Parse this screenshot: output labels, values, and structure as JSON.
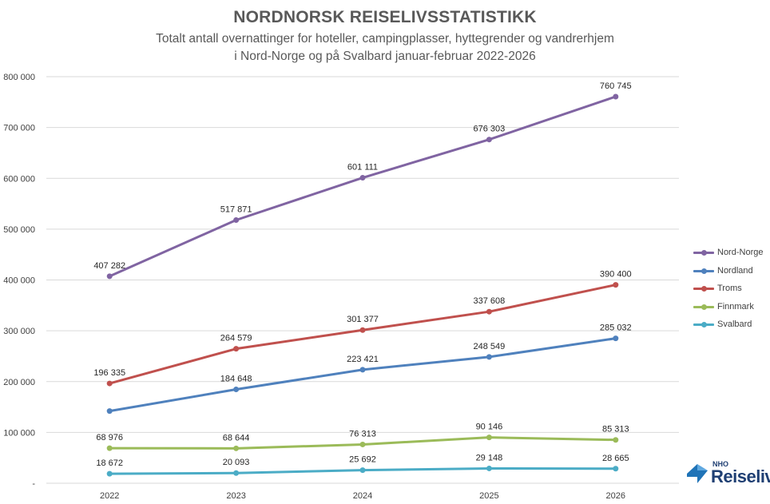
{
  "chart_data": {
    "type": "line",
    "title": "NORDNORSK REISELIVSSTATISTIKK",
    "subtitle_line1": "Totalt antall overnattinger for hoteller, campingplasser, hyttegrender og vandrerhjem",
    "subtitle_line2": "i Nord-Norge og på Svalbard januar-februar 2022-2026",
    "categories": [
      "2022",
      "2023",
      "2024",
      "2025",
      "2026"
    ],
    "ylim": [
      0,
      800000
    ],
    "y_ticks": [
      {
        "value": 0,
        "label": "-"
      },
      {
        "value": 100000,
        "label": "100 000"
      },
      {
        "value": 200000,
        "label": "200 000"
      },
      {
        "value": 300000,
        "label": "300 000"
      },
      {
        "value": 400000,
        "label": "400 000"
      },
      {
        "value": 500000,
        "label": "500 000"
      },
      {
        "value": 600000,
        "label": "600 000"
      },
      {
        "value": 700000,
        "label": "700 000"
      },
      {
        "value": 800000,
        "label": "800 000"
      }
    ],
    "grid": true,
    "legend_position": "right",
    "series": [
      {
        "name": "Nord-Norge",
        "color": "#8064a2",
        "values": [
          407282,
          517871,
          601111,
          676303,
          760745
        ],
        "labels": [
          "407 282",
          "517 871",
          "601 111",
          "676 303",
          "760 745"
        ]
      },
      {
        "name": "Nordland",
        "color": "#4f81bd",
        "values": [
          142000,
          184648,
          223421,
          248549,
          285032
        ],
        "labels": [
          "",
          "184 648",
          "223 421",
          "248 549",
          "285 032"
        ]
      },
      {
        "name": "Troms",
        "color": "#c0504d",
        "values": [
          196335,
          264579,
          301377,
          337608,
          390400
        ],
        "labels": [
          "196 335",
          "264 579",
          "301 377",
          "337 608",
          "390 400"
        ]
      },
      {
        "name": "Finnmark",
        "color": "#9bbb59",
        "values": [
          68976,
          68644,
          76313,
          90146,
          85313
        ],
        "labels": [
          "68 976",
          "68 644",
          "76 313",
          "90 146",
          "85 313"
        ]
      },
      {
        "name": "Svalbard",
        "color": "#4bacc6",
        "values": [
          18672,
          20093,
          25692,
          29148,
          28665
        ],
        "labels": [
          "18 672",
          "20 093",
          "25 692",
          "29 148",
          "28 665"
        ]
      }
    ]
  },
  "logo": {
    "small": "NHO",
    "big": "Reiseliv"
  }
}
